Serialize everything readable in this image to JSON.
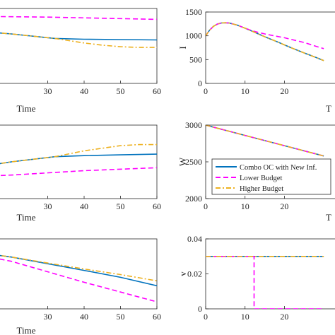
{
  "colors": {
    "combo": "#0072BD",
    "lower": "#FF00FF",
    "higher": "#EDB120",
    "axis": "#262626"
  },
  "legend": [
    {
      "key": "combo",
      "label": "Combo OC with New Inf."
    },
    {
      "key": "lower",
      "label": "Lower Budget"
    },
    {
      "key": "higher",
      "label": "Higher Budget"
    }
  ],
  "chart_data": [
    {
      "id": "top-left",
      "type": "line",
      "xlabel": "Time",
      "ylabel": "",
      "xlim": [
        0,
        60
      ],
      "x_ticks": [
        "30",
        "40",
        "50",
        "60"
      ],
      "ylim": [
        0,
        1
      ],
      "y_ticks": [],
      "series": [
        {
          "key": "combo",
          "x": [
            0,
            20,
            32,
            40,
            50,
            60
          ],
          "y": [
            0.74,
            0.66,
            0.6,
            0.59,
            0.585,
            0.58
          ]
        },
        {
          "key": "lower",
          "x": [
            0,
            30,
            45,
            60
          ],
          "y": [
            0.9,
            0.885,
            0.87,
            0.855
          ]
        },
        {
          "key": "higher",
          "x": [
            0,
            20,
            32,
            40,
            45,
            50,
            55,
            60
          ],
          "y": [
            0.74,
            0.66,
            0.6,
            0.54,
            0.51,
            0.49,
            0.48,
            0.48
          ]
        }
      ]
    },
    {
      "id": "top-right",
      "type": "line",
      "xlabel": "T",
      "ylabel": "I",
      "xlim": [
        0,
        30
      ],
      "x_ticks": [
        "0",
        "10",
        "20"
      ],
      "ylim": [
        0,
        1500
      ],
      "y_ticks": [
        "0",
        "500",
        "1000",
        "1500"
      ],
      "series": [
        {
          "key": "combo",
          "x": [
            0,
            1,
            2,
            3,
            4,
            5,
            6,
            8,
            10,
            12,
            15,
            18,
            20,
            22,
            25,
            28,
            30
          ],
          "y": [
            1000,
            1120,
            1200,
            1248,
            1270,
            1275,
            1268,
            1225,
            1160,
            1090,
            980,
            880,
            810,
            740,
            640,
            545,
            480
          ]
        },
        {
          "key": "lower",
          "x": [
            0,
            1,
            2,
            3,
            4,
            5,
            6,
            8,
            10,
            12,
            15,
            18,
            20,
            22,
            25,
            28,
            30
          ],
          "y": [
            1000,
            1120,
            1200,
            1248,
            1270,
            1275,
            1268,
            1225,
            1160,
            1100,
            1040,
            990,
            960,
            920,
            860,
            780,
            730
          ]
        },
        {
          "key": "higher",
          "x": [
            0,
            1,
            2,
            3,
            4,
            5,
            6,
            8,
            10,
            12,
            15,
            18,
            20,
            22,
            25,
            28,
            30
          ],
          "y": [
            1000,
            1120,
            1200,
            1248,
            1270,
            1275,
            1268,
            1225,
            1160,
            1090,
            980,
            880,
            810,
            740,
            640,
            545,
            480
          ]
        }
      ]
    },
    {
      "id": "mid-left",
      "type": "line",
      "xlabel": "Time",
      "ylabel": "",
      "xlim": [
        0,
        60
      ],
      "x_ticks": [
        "30",
        "40",
        "50",
        "60"
      ],
      "ylim": [
        0,
        1
      ],
      "y_ticks": [],
      "series": [
        {
          "key": "combo",
          "x": [
            0,
            20,
            32,
            40,
            50,
            60
          ],
          "y": [
            0.35,
            0.5,
            0.57,
            0.585,
            0.595,
            0.605
          ]
        },
        {
          "key": "lower",
          "x": [
            0,
            20,
            40,
            60
          ],
          "y": [
            0.28,
            0.32,
            0.38,
            0.42
          ]
        },
        {
          "key": "higher",
          "x": [
            0,
            20,
            32,
            40,
            50,
            55,
            60
          ],
          "y": [
            0.35,
            0.5,
            0.57,
            0.65,
            0.72,
            0.735,
            0.735
          ]
        }
      ]
    },
    {
      "id": "mid-right",
      "type": "line",
      "xlabel": "T",
      "ylabel": "W",
      "xlim": [
        0,
        30
      ],
      "x_ticks": [
        "0",
        "10",
        "20"
      ],
      "ylim": [
        2000,
        3000
      ],
      "y_ticks": [
        "2000",
        "2500",
        "3000"
      ],
      "series": [
        {
          "key": "combo",
          "x": [
            0,
            10,
            20,
            30
          ],
          "y": [
            3000,
            2860,
            2720,
            2580
          ]
        },
        {
          "key": "lower",
          "x": [
            0,
            10,
            20,
            30
          ],
          "y": [
            3000,
            2860,
            2720,
            2580
          ]
        },
        {
          "key": "higher",
          "x": [
            0,
            10,
            20,
            30
          ],
          "y": [
            3000,
            2860,
            2720,
            2580
          ]
        }
      ]
    },
    {
      "id": "bottom-left",
      "type": "line",
      "xlabel": "Time",
      "ylabel": "",
      "xlim": [
        0,
        60
      ],
      "x_ticks": [
        "30",
        "40",
        "50",
        "60"
      ],
      "ylim": [
        0,
        1
      ],
      "y_ticks": [],
      "series": [
        {
          "key": "combo",
          "x": [
            0,
            20,
            40,
            50,
            60
          ],
          "y": [
            0.88,
            0.74,
            0.55,
            0.45,
            0.33
          ]
        },
        {
          "key": "lower",
          "x": [
            0,
            20,
            40,
            50,
            60
          ],
          "y": [
            0.88,
            0.68,
            0.38,
            0.24,
            0.1
          ]
        },
        {
          "key": "higher",
          "x": [
            0,
            20,
            40,
            50,
            60
          ],
          "y": [
            0.88,
            0.74,
            0.57,
            0.49,
            0.4
          ]
        }
      ]
    },
    {
      "id": "bottom-right",
      "type": "line",
      "xlabel": "",
      "ylabel": "v",
      "xlim": [
        0,
        30
      ],
      "x_ticks": [
        "0",
        "10",
        "20"
      ],
      "ylim": [
        0,
        0.04
      ],
      "y_ticks": [
        "0",
        "0.02",
        "0.04"
      ],
      "series": [
        {
          "key": "combo",
          "x": [
            0,
            30
          ],
          "y": [
            0.03,
            0.03
          ]
        },
        {
          "key": "lower",
          "x": [
            0,
            12.3,
            12.3,
            12.3,
            30
          ],
          "y": [
            0.03,
            0.03,
            0.03,
            0.0,
            0.0
          ]
        },
        {
          "key": "higher",
          "x": [
            0,
            30
          ],
          "y": [
            0.03,
            0.03
          ]
        }
      ]
    }
  ]
}
